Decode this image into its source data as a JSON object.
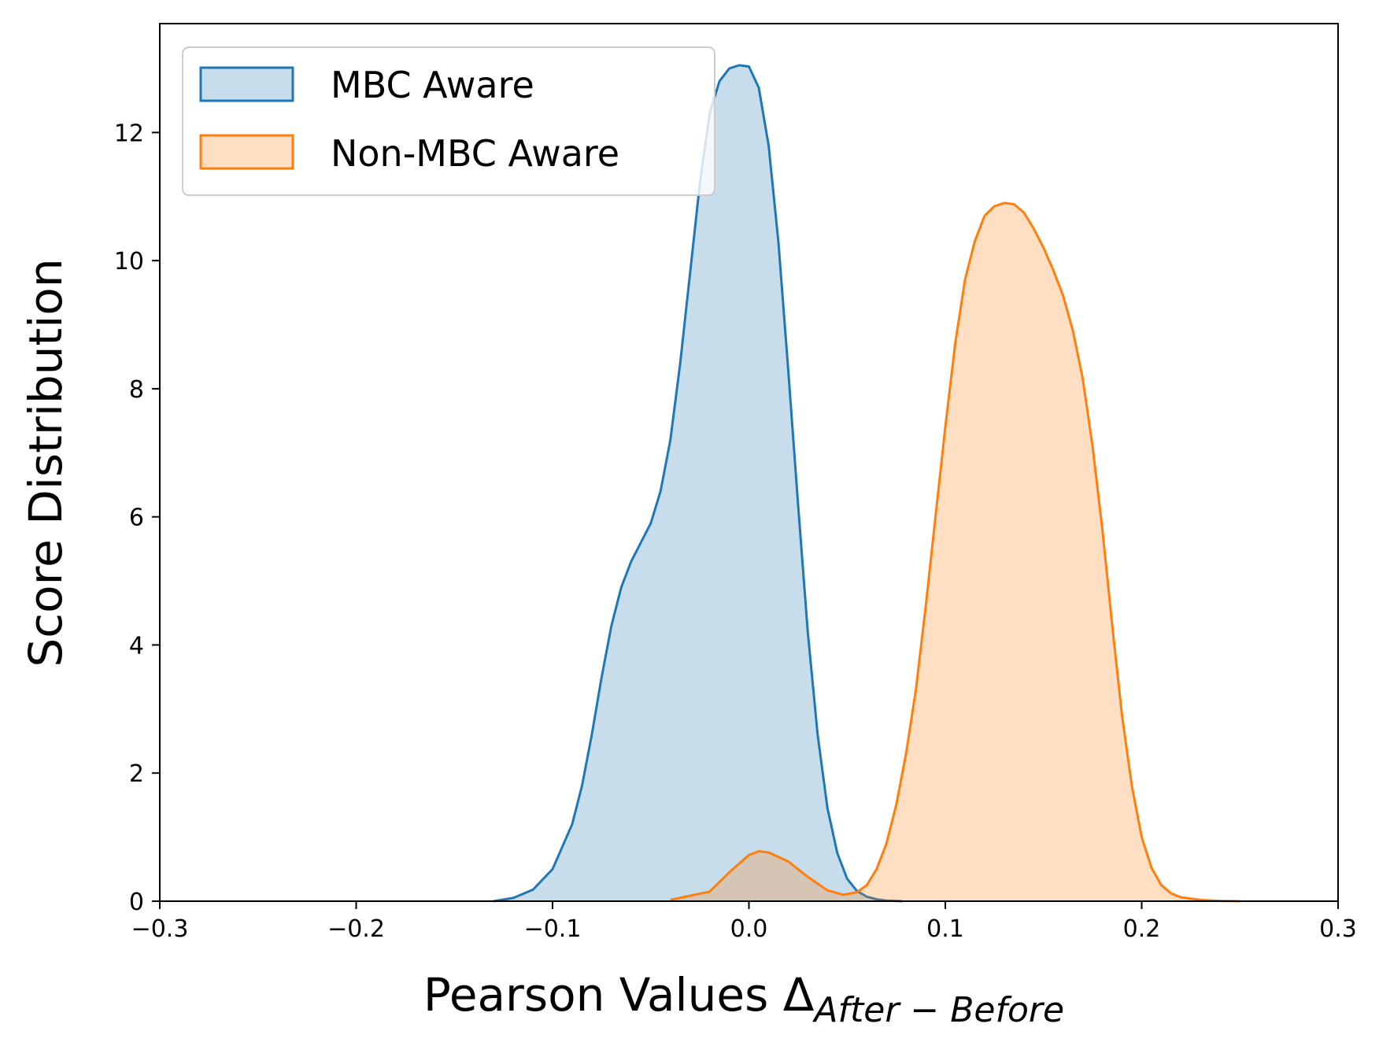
{
  "chart_data": {
    "type": "area",
    "title": "",
    "xlabel": "Pearson Values Δ",
    "xlabel_subscript": "After − Before",
    "ylabel": "Score Distribution",
    "xlim": [
      -0.3,
      0.3
    ],
    "ylim": [
      0,
      13.7
    ],
    "xticks": [
      -0.3,
      -0.2,
      -0.1,
      0.0,
      0.1,
      0.2,
      0.3
    ],
    "xtick_labels": [
      "−0.3",
      "−0.2",
      "−0.1",
      "0.0",
      "0.1",
      "0.2",
      "0.3"
    ],
    "yticks": [
      0,
      2,
      4,
      6,
      8,
      10,
      12
    ],
    "ytick_labels": [
      "0",
      "2",
      "4",
      "6",
      "8",
      "10",
      "12"
    ],
    "grid": false,
    "legend_position": "top-left",
    "series": [
      {
        "name": "MBC Aware",
        "color": "#1f77b4",
        "fill": "#c6dbed",
        "x": [
          -0.13,
          -0.12,
          -0.11,
          -0.1,
          -0.09,
          -0.085,
          -0.08,
          -0.075,
          -0.07,
          -0.065,
          -0.06,
          -0.055,
          -0.05,
          -0.045,
          -0.04,
          -0.035,
          -0.03,
          -0.025,
          -0.02,
          -0.015,
          -0.01,
          -0.005,
          0.0,
          0.005,
          0.01,
          0.015,
          0.02,
          0.025,
          0.03,
          0.035,
          0.04,
          0.045,
          0.05,
          0.055,
          0.06,
          0.065,
          0.07,
          0.078
        ],
        "y": [
          0.0,
          0.05,
          0.18,
          0.5,
          1.2,
          1.8,
          2.6,
          3.5,
          4.3,
          4.9,
          5.3,
          5.6,
          5.9,
          6.4,
          7.2,
          8.4,
          9.8,
          11.2,
          12.3,
          12.8,
          13.0,
          13.05,
          13.03,
          12.7,
          11.8,
          10.3,
          8.3,
          6.2,
          4.2,
          2.6,
          1.45,
          0.75,
          0.35,
          0.16,
          0.07,
          0.03,
          0.01,
          0.0
        ]
      },
      {
        "name": "Non-MBC Aware",
        "color": "#ff7f0e",
        "fill": "#fdd9b9",
        "x": [
          -0.04,
          -0.02,
          -0.01,
          0.0,
          0.005,
          0.01,
          0.02,
          0.03,
          0.04,
          0.048,
          0.055,
          0.06,
          0.065,
          0.07,
          0.075,
          0.08,
          0.085,
          0.09,
          0.095,
          0.1,
          0.105,
          0.11,
          0.115,
          0.12,
          0.125,
          0.13,
          0.135,
          0.14,
          0.145,
          0.15,
          0.155,
          0.16,
          0.165,
          0.17,
          0.175,
          0.18,
          0.185,
          0.19,
          0.195,
          0.2,
          0.205,
          0.21,
          0.215,
          0.22,
          0.23,
          0.24,
          0.25
        ],
        "y": [
          0.02,
          0.15,
          0.45,
          0.72,
          0.78,
          0.76,
          0.62,
          0.38,
          0.17,
          0.1,
          0.14,
          0.25,
          0.5,
          0.9,
          1.5,
          2.3,
          3.3,
          4.6,
          6.0,
          7.4,
          8.7,
          9.7,
          10.3,
          10.7,
          10.85,
          10.9,
          10.88,
          10.75,
          10.5,
          10.2,
          9.85,
          9.45,
          8.9,
          8.15,
          7.1,
          5.8,
          4.3,
          2.9,
          1.8,
          1.0,
          0.52,
          0.25,
          0.12,
          0.06,
          0.02,
          0.005,
          0.0
        ]
      }
    ]
  }
}
